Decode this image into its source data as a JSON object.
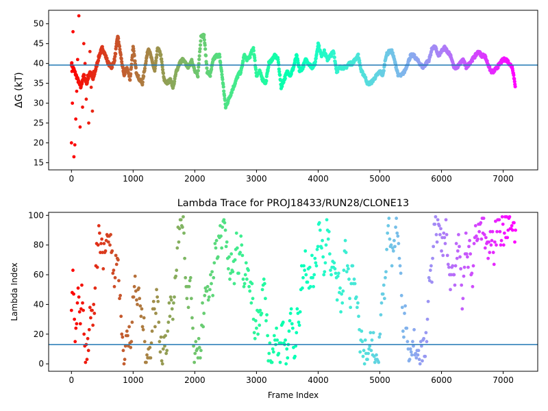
{
  "chart_data": [
    {
      "type": "scatter",
      "title": "",
      "xlabel": "",
      "ylabel": "ΔG (kT)",
      "xlim": [
        -370,
        7560
      ],
      "ylim": [
        13.2,
        53.4
      ],
      "xticks": [
        0,
        1000,
        2000,
        3000,
        4000,
        5000,
        6000,
        7000
      ],
      "yticks": [
        15,
        20,
        25,
        30,
        35,
        40,
        45,
        50
      ],
      "hline": 39.6,
      "hline_color": "#1f77b4",
      "colormap": "rainbow_r",
      "x_max": 7200,
      "series": [
        {
          "x": [
            0,
            50,
            100,
            150,
            200,
            250,
            300,
            350,
            400,
            450,
            500,
            550,
            600,
            650,
            700,
            750,
            800,
            850,
            900,
            950,
            1000,
            1050,
            1100,
            1150,
            1200,
            1250,
            1300,
            1350,
            1400,
            1450,
            1500,
            1550,
            1600,
            1650,
            1700,
            1750,
            1800,
            1850,
            1900,
            1950,
            2000,
            2050,
            2100,
            2150,
            2200,
            2250,
            2300,
            2350,
            2400,
            2450,
            2500,
            2550,
            2600,
            2650,
            2700,
            2750,
            2800,
            2850,
            2900,
            2950,
            3000,
            3050,
            3100,
            3150,
            3200,
            3250,
            3300,
            3350,
            3400,
            3450,
            3500,
            3550,
            3600,
            3650,
            3700,
            3750,
            3800,
            3850,
            3900,
            3950,
            4000,
            4050,
            4100,
            4150,
            4200,
            4250,
            4300,
            4350,
            4400,
            4450,
            4500,
            4550,
            4600,
            4650,
            4700,
            4750,
            4800,
            4850,
            4900,
            4950,
            5000,
            5050,
            5100,
            5150,
            5200,
            5250,
            5300,
            5350,
            5400,
            5450,
            5500,
            5550,
            5600,
            5650,
            5700,
            5750,
            5800,
            5850,
            5900,
            5950,
            6000,
            6050,
            6100,
            6150,
            6200,
            6250,
            6300,
            6350,
            6400,
            6450,
            6500,
            6550,
            6600,
            6650,
            6700,
            6750,
            6800,
            6850,
            6900,
            6950,
            7000,
            7050,
            7100,
            7150,
            7200
          ],
          "y": [
            40,
            38,
            36,
            34,
            37,
            35,
            38,
            36,
            39,
            42,
            44,
            42,
            40,
            39,
            41,
            47,
            42,
            37,
            39,
            36,
            44,
            38,
            36,
            35,
            40,
            44,
            41,
            38,
            44,
            42,
            36,
            35,
            36,
            34,
            38,
            40,
            41,
            40,
            39,
            41,
            38,
            37,
            47,
            47,
            38,
            37,
            41,
            42,
            42,
            36,
            29,
            31,
            33,
            35,
            37,
            38,
            42,
            41,
            42,
            44,
            37,
            38,
            36,
            35,
            40,
            41,
            42,
            41,
            34,
            36,
            38,
            37,
            39,
            42,
            38,
            39,
            41,
            40,
            39,
            40,
            45,
            42,
            43,
            41,
            42,
            43,
            38,
            39,
            39,
            39,
            40,
            40,
            41,
            42,
            38,
            37,
            35,
            35,
            36,
            37,
            38,
            37,
            42,
            43,
            43,
            40,
            37,
            37,
            38,
            40,
            42,
            42,
            41,
            40,
            39,
            40,
            41,
            44,
            44,
            42,
            43,
            44,
            43,
            42,
            39,
            39,
            40,
            41,
            39,
            40,
            41,
            42,
            43,
            42,
            42,
            40,
            38,
            38,
            39,
            40,
            41,
            41,
            40,
            39,
            34
          ]
        },
        {
          "name": "",
          "x": [
            0,
            8,
            15,
            25,
            40,
            55,
            70,
            85,
            100,
            120,
            140,
            160,
            180,
            200,
            220,
            240,
            260,
            280,
            300,
            320,
            340,
            360
          ],
          "y": [
            20,
            38,
            30,
            48,
            16.5,
            19.5,
            26,
            33,
            41,
            52,
            24,
            35,
            29,
            45,
            40,
            31,
            37,
            25,
            43,
            34,
            28,
            38
          ]
        }
      ]
    },
    {
      "type": "scatter",
      "title": "Lambda Trace for PROJ18433/RUN28/CLONE13",
      "xlabel": "Frame Index",
      "ylabel": "Lambda Index",
      "xlim": [
        -370,
        7560
      ],
      "ylim": [
        -5,
        102
      ],
      "xticks": [
        0,
        1000,
        2000,
        3000,
        4000,
        5000,
        6000,
        7000
      ],
      "yticks": [
        0,
        20,
        40,
        60,
        80,
        100
      ],
      "hline": 13,
      "hline_color": "#1f77b4",
      "colormap": "rainbow_r",
      "x_max": 7200,
      "lambda_min": 0,
      "lambda_max": 99,
      "frame_step": 12
    }
  ]
}
